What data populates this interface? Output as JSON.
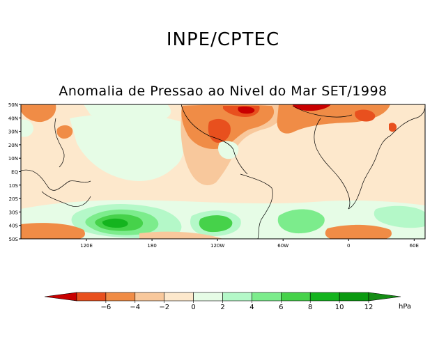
{
  "header": {
    "title": "INPE/CPTEC"
  },
  "map": {
    "title": "Anomalia de Pressao ao Nivel do Mar SET/1998",
    "lat_labels": [
      "50N",
      "40N",
      "30N",
      "20N",
      "10N",
      "EQ",
      "10S",
      "20S",
      "30S",
      "40S",
      "50S"
    ],
    "lon_labels": [
      "120E",
      "180",
      "120W",
      "60W",
      "0",
      "60E"
    ]
  },
  "colorbar": {
    "unit": "hPa",
    "tick_labels": [
      "−6",
      "−4",
      "−2",
      "0",
      "2",
      "4",
      "6",
      "8",
      "10",
      "12"
    ],
    "colors": [
      "#c80000",
      "#e8501e",
      "#f08c46",
      "#f8c89c",
      "#fde8cc",
      "#e6fce6",
      "#b4f8c8",
      "#7cec8c",
      "#46d24a",
      "#14b41e",
      "#0a9a10",
      "#148c14"
    ]
  },
  "chart_data": {
    "type": "heatmap",
    "title": "Anomalia de Pressao ao Nivel do Mar SET/1998",
    "variable": "sea level pressure anomaly",
    "units": "hPa",
    "levels": [
      -6,
      -4,
      -2,
      0,
      2,
      4,
      6,
      8,
      10,
      12
    ],
    "lon_range": [
      60,
      430
    ],
    "lat_range": [
      -50,
      50
    ],
    "features": [
      {
        "region": "North Atlantic / eastern North America",
        "anomaly": "-4 to -6"
      },
      {
        "region": "Southern Ocean south of Australia/New Zealand",
        "anomaly": "+6 to +10"
      },
      {
        "region": "South Pacific near 120W",
        "anomaly": "+6 to +8"
      },
      {
        "region": "South Atlantic near 0",
        "anomaly": "+4 to +6"
      },
      {
        "region": "Tropical Pacific",
        "anomaly": "0 to +2"
      },
      {
        "region": "Eastern Pacific / Americas",
        "anomaly": "0 to -2"
      }
    ]
  }
}
